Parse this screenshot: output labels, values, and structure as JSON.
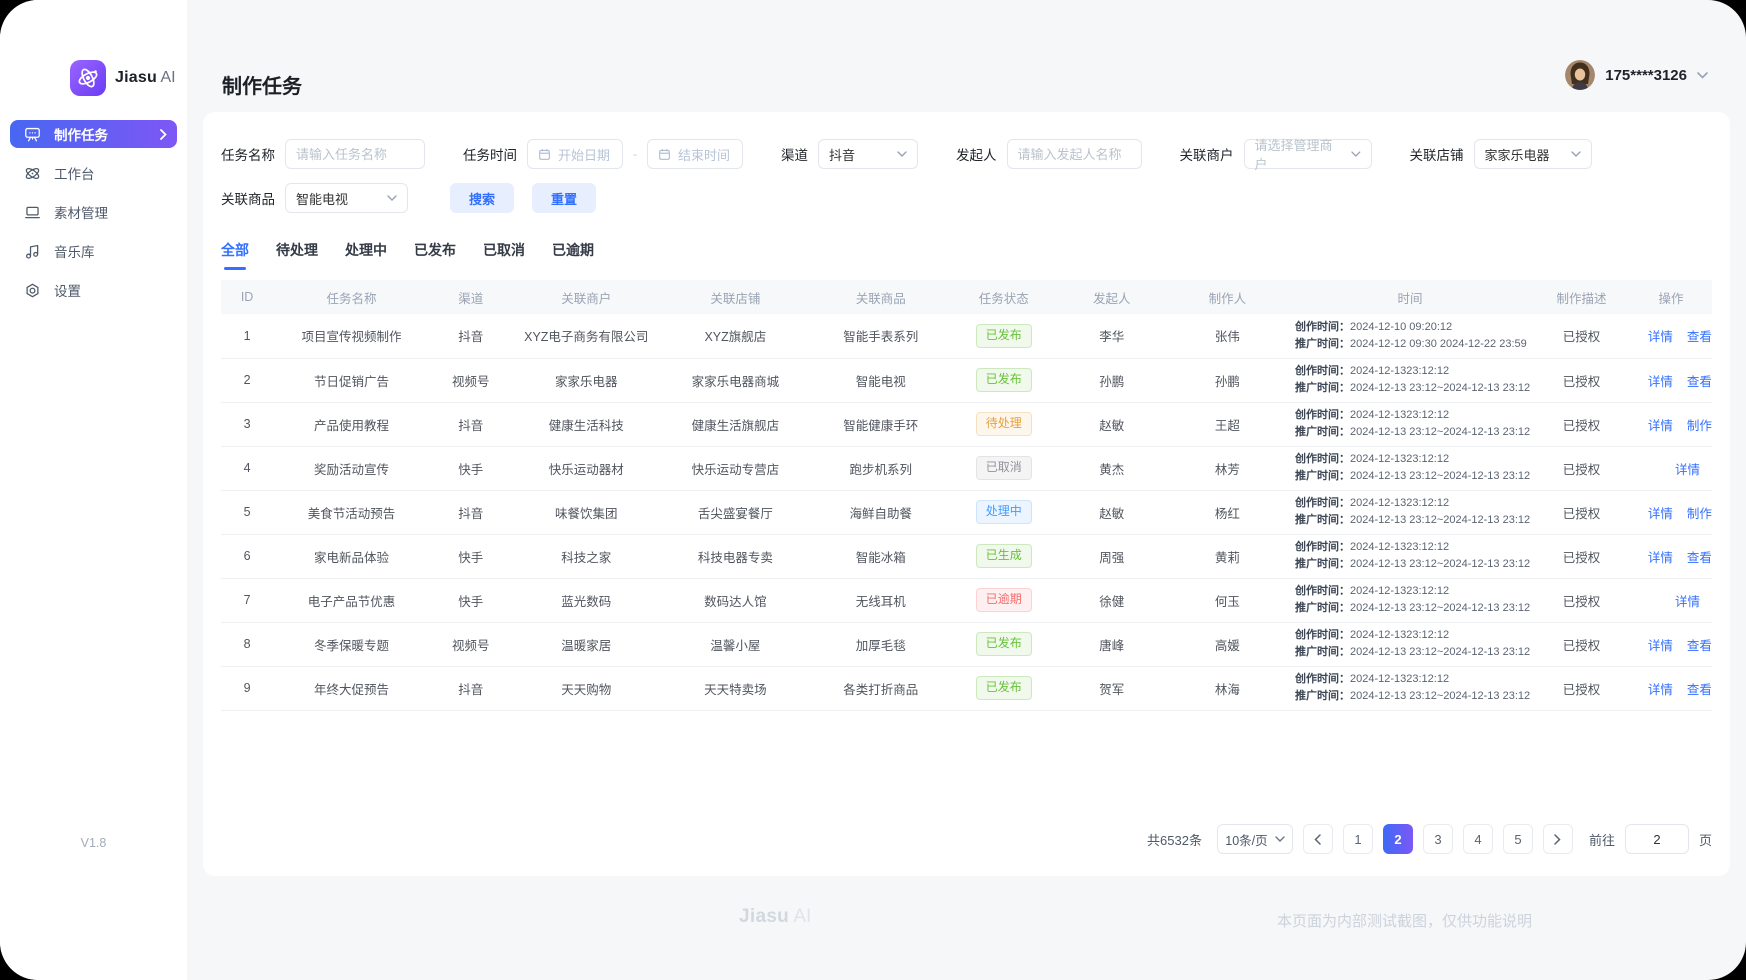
{
  "app": {
    "brand": "Jiasu",
    "brand_suffix": "AI",
    "version": "V1.8"
  },
  "sidebar": {
    "items": [
      {
        "key": "production-tasks",
        "label": "制作任务",
        "active": true
      },
      {
        "key": "workspace",
        "label": "工作台",
        "active": false
      },
      {
        "key": "material-management",
        "label": "素材管理",
        "active": false
      },
      {
        "key": "music-library",
        "label": "音乐库",
        "active": false
      },
      {
        "key": "settings",
        "label": "设置",
        "active": false
      }
    ]
  },
  "header": {
    "title": "制作任务",
    "user": "175****3126"
  },
  "filters": {
    "task_name": {
      "label": "任务名称",
      "placeholder": "请输入任务名称"
    },
    "task_time": {
      "label": "任务时间",
      "start_placeholder": "开始日期",
      "separator": "-",
      "end_placeholder": "结束时间"
    },
    "channel": {
      "label": "渠道",
      "value": "抖音"
    },
    "initiator": {
      "label": "发起人",
      "placeholder": "请输入发起人名称"
    },
    "merchant": {
      "label": "关联商户",
      "placeholder": "请选择管理商户"
    },
    "store": {
      "label": "关联店铺",
      "value": "家家乐电器"
    },
    "product": {
      "label": "关联商品",
      "value": "智能电视"
    },
    "search_label": "搜索",
    "reset_label": "重置"
  },
  "tabs": {
    "items": [
      "全部",
      "待处理",
      "处理中",
      "已发布",
      "已取消",
      "已逾期"
    ],
    "active_index": 0
  },
  "table": {
    "columns": [
      "ID",
      "任务名称",
      "渠道",
      "关联商户",
      "关联店铺",
      "关联商品",
      "任务状态",
      "发起人",
      "制作人",
      "时间",
      "制作描述",
      "操作"
    ],
    "time_labels": {
      "create": "创作时间：",
      "promote": "推广时间："
    },
    "rows": [
      {
        "id": "1",
        "name": "项目宣传视频制作",
        "channel": "抖音",
        "merchant": "XYZ电子商务有限公司",
        "store": "XYZ旗舰店",
        "product": "智能手表系列",
        "status": {
          "label": "已发布",
          "type": "success"
        },
        "initiator": "李华",
        "maker": "张伟",
        "time": {
          "create": "2024-12-10 09:20:12",
          "promote": "2024-12-12 09:30 2024-12-22 23:59"
        },
        "desc": "已授权",
        "actions": [
          "详情",
          "查看"
        ]
      },
      {
        "id": "2",
        "name": "节日促销广告",
        "channel": "视频号",
        "merchant": "家家乐电器",
        "store": "家家乐电器商城",
        "product": "智能电视",
        "status": {
          "label": "已发布",
          "type": "success"
        },
        "initiator": "孙鹏",
        "maker": "孙鹏",
        "time": {
          "create": "2024-12-1323:12:12",
          "promote": "2024-12-13 23:12~2024-12-13 23:12"
        },
        "desc": "已授权",
        "actions": [
          "详情",
          "查看"
        ]
      },
      {
        "id": "3",
        "name": "产品使用教程",
        "channel": "抖音",
        "merchant": "健康生活科技",
        "store": "健康生活旗舰店",
        "product": "智能健康手环",
        "status": {
          "label": "待处理",
          "type": "warning"
        },
        "initiator": "赵敏",
        "maker": "王超",
        "time": {
          "create": "2024-12-1323:12:12",
          "promote": "2024-12-13 23:12~2024-12-13 23:12"
        },
        "desc": "已授权",
        "actions": [
          "详情",
          "制作"
        ]
      },
      {
        "id": "4",
        "name": "奖励活动宣传",
        "channel": "快手",
        "merchant": "快乐运动器材",
        "store": "快乐运动专营店",
        "product": "跑步机系列",
        "status": {
          "label": "已取消",
          "type": "info"
        },
        "initiator": "黄杰",
        "maker": "林芳",
        "time": {
          "create": "2024-12-1323:12:12",
          "promote": "2024-12-13 23:12~2024-12-13 23:12"
        },
        "desc": "已授权",
        "actions": [
          "详情"
        ]
      },
      {
        "id": "5",
        "name": "美食节活动预告",
        "channel": "抖音",
        "merchant": "味餐饮集团",
        "store": "舌尖盛宴餐厅",
        "product": "海鲜自助餐",
        "status": {
          "label": "处理中",
          "type": "primary"
        },
        "initiator": "赵敏",
        "maker": "杨红",
        "time": {
          "create": "2024-12-1323:12:12",
          "promote": "2024-12-13 23:12~2024-12-13 23:12"
        },
        "desc": "已授权",
        "actions": [
          "详情",
          "制作"
        ]
      },
      {
        "id": "6",
        "name": "家电新品体验",
        "channel": "快手",
        "merchant": "科技之家",
        "store": "科技电器专卖",
        "product": "智能冰箱",
        "status": {
          "label": "已生成",
          "type": "success"
        },
        "initiator": "周强",
        "maker": "黄莉",
        "time": {
          "create": "2024-12-1323:12:12",
          "promote": "2024-12-13 23:12~2024-12-13 23:12"
        },
        "desc": "已授权",
        "actions": [
          "详情",
          "查看"
        ]
      },
      {
        "id": "7",
        "name": "电子产品节优惠",
        "channel": "快手",
        "merchant": "蓝光数码",
        "store": "数码达人馆",
        "product": "无线耳机",
        "status": {
          "label": "已逾期",
          "type": "danger"
        },
        "initiator": "徐健",
        "maker": "何玉",
        "time": {
          "create": "2024-12-1323:12:12",
          "promote": "2024-12-13 23:12~2024-12-13 23:12"
        },
        "desc": "已授权",
        "actions": [
          "详情"
        ]
      },
      {
        "id": "8",
        "name": "冬季保暖专题",
        "channel": "视频号",
        "merchant": "温暖家居",
        "store": "温馨小屋",
        "product": "加厚毛毯",
        "status": {
          "label": "已发布",
          "type": "success"
        },
        "initiator": "唐峰",
        "maker": "高媛",
        "time": {
          "create": "2024-12-1323:12:12",
          "promote": "2024-12-13 23:12~2024-12-13 23:12"
        },
        "desc": "已授权",
        "actions": [
          "详情",
          "查看"
        ]
      },
      {
        "id": "9",
        "name": "年终大促预告",
        "channel": "抖音",
        "merchant": "天天购物",
        "store": "天天特卖场",
        "product": "各类打折商品",
        "status": {
          "label": "已发布",
          "type": "success"
        },
        "initiator": "贺军",
        "maker": "林海",
        "time": {
          "create": "2024-12-1323:12:12",
          "promote": "2024-12-13 23:12~2024-12-13 23:12"
        },
        "desc": "已授权",
        "actions": [
          "详情",
          "查看"
        ]
      }
    ]
  },
  "pagination": {
    "total": "共6532条",
    "page_size": "10条/页",
    "pages": [
      "1",
      "2",
      "3",
      "4",
      "5"
    ],
    "active_page": "2",
    "goto_label": "前往",
    "goto_value": "2",
    "goto_suffix": "页"
  },
  "footer": {
    "note": "本页面为内部测试截图，仅供功能说明"
  }
}
